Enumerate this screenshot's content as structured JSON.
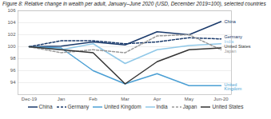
{
  "chart_data": {
    "type": "line",
    "title": "Figure 8: Relative change in wealth per adult, January–June 2020 (USD, December 2019=100), selected countries",
    "categories": [
      "Dec-19",
      "Jan",
      "Feb",
      "Mar",
      "Apr",
      "May",
      "Jun-20"
    ],
    "ylim": [
      92,
      106
    ],
    "yticks": [
      94,
      96,
      98,
      100,
      102,
      104,
      106
    ],
    "grid": true,
    "legend": "bottom",
    "series": [
      {
        "name": "China",
        "color": "#1a3a6b",
        "line_style": "solid",
        "values": [
          100,
          100.1,
          100.8,
          100.3,
          102.5,
          102.0,
          104.2
        ]
      },
      {
        "name": "Germany",
        "color": "#1a3a6b",
        "line_style": "dashed",
        "values": [
          100,
          101.0,
          101.0,
          100.5,
          100.8,
          101.5,
          101.3
        ]
      },
      {
        "name": "United Kingdom",
        "color": "#4a9fd4",
        "line_style": "solid",
        "values": [
          100,
          99.8,
          96.0,
          93.8,
          95.5,
          93.5,
          93.5
        ]
      },
      {
        "name": "India",
        "color": "#90c8e8",
        "line_style": "solid",
        "values": [
          100,
          99.5,
          100.5,
          97.2,
          99.5,
          100.2,
          100.5
        ]
      },
      {
        "name": "Japan",
        "color": "#999999",
        "line_style": "dashed",
        "values": [
          100,
          99.0,
          99.5,
          99.0,
          101.8,
          102.0,
          99.5
        ]
      },
      {
        "name": "United States",
        "color": "#333333",
        "line_style": "solid",
        "values": [
          100,
          99.5,
          99.0,
          93.8,
          97.5,
          99.5,
          99.8
        ]
      }
    ],
    "annotations": [
      {
        "text": "China",
        "x": "Jun-20",
        "y": 104.2,
        "color": "#1a3a6b"
      },
      {
        "text": "Germany",
        "x": "Jun-20",
        "y": 101.6,
        "color": "#1a3a6b"
      },
      {
        "text": "India",
        "x": "Jun-20",
        "y": 100.8,
        "color": "#90c8e8"
      },
      {
        "text": "United States",
        "x": "Jun-20",
        "y": 100.0,
        "color": "#333333"
      },
      {
        "text": "Japan",
        "x": "Jun-20",
        "y": 99.2,
        "color": "#999999"
      },
      {
        "text": "United\nKingdom",
        "x": "Jun-20",
        "y": 93.3,
        "color": "#4a9fd4"
      }
    ]
  }
}
